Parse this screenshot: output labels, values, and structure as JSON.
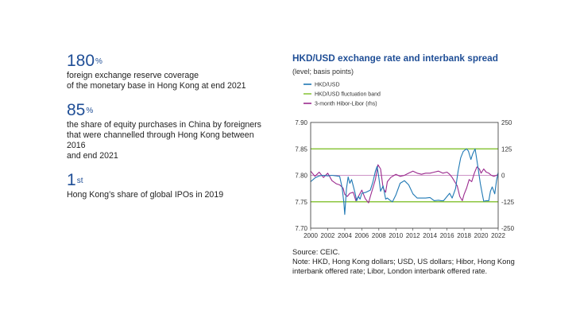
{
  "stats": [
    {
      "value": "180",
      "unit": "%",
      "desc": "foreign exchange reserve coverage\nof the monetary base in Hong Kong at end 2021"
    },
    {
      "value": "85",
      "unit": "%",
      "desc": "the share of equity purchases in China by foreigners\nthat were channelled through Hong Kong between 2016\nand end 2021"
    },
    {
      "value": "1",
      "unit": "st",
      "desc": "Hong Kong’s share of global IPOs in 2019"
    }
  ],
  "source": "Source: CEIC.",
  "note": "Note: HKD, Hong Kong dollars; USD, US dollars; Hibor, Hong Kong interbank offered rate; Libor, London interbank offered rate.",
  "colors": {
    "accent": "#1f4e96",
    "hkd": "#1f78b4",
    "band": "#8cc63f",
    "spread": "#9b2a8e"
  },
  "chart_data": {
    "type": "line",
    "title": "HKD/USD exchange rate and interbank spread",
    "subtitle": "(level; basis points)",
    "x_ticks": [
      "2000",
      "2002",
      "2004",
      "2006",
      "2008",
      "2010",
      "2012",
      "2014",
      "2016",
      "2018",
      "2020",
      "2022"
    ],
    "x_range": [
      2000,
      2022
    ],
    "ylim_left": [
      7.7,
      7.9
    ],
    "ylim_right": [
      -250,
      250
    ],
    "y_ticks_left": [
      "7.70",
      "7.75",
      "7.80",
      "7.85",
      "7.90"
    ],
    "y_ticks_right": [
      "-250",
      "-125",
      "0",
      "125",
      "250"
    ],
    "legend": [
      "HKD/USD",
      "HKD/USD fluctuation band",
      "3-month Hibor-Libor (rhs)"
    ],
    "band": [
      7.75,
      7.85
    ],
    "series": [
      {
        "name": "HKD/USD",
        "axis": "left",
        "x": [
          2000,
          2000.5,
          2001,
          2001.5,
          2002,
          2002.5,
          2003,
          2003.4,
          2003.7,
          2003.9,
          2004,
          2004.2,
          2004.4,
          2004.6,
          2004.8,
          2005,
          2005.2,
          2005.4,
          2005.6,
          2005.8,
          2006,
          2006.5,
          2007,
          2007.3,
          2007.6,
          2007.8,
          2008,
          2008.2,
          2008.5,
          2008.8,
          2009,
          2009.3,
          2009.6,
          2010,
          2010.5,
          2011,
          2011.5,
          2012,
          2012.5,
          2013,
          2013.5,
          2014,
          2014.5,
          2015,
          2015.3,
          2015.6,
          2016,
          2016.3,
          2016.6,
          2017,
          2017.3,
          2017.6,
          2017.9,
          2018.1,
          2018.3,
          2018.5,
          2018.8,
          2019,
          2019.3,
          2019.6,
          2019.9,
          2020.1,
          2020.3,
          2020.6,
          2020.9,
          2021.1,
          2021.3,
          2021.6,
          2021.8,
          2022
        ],
        "y": [
          7.788,
          7.795,
          7.799,
          7.8,
          7.799,
          7.8,
          7.799,
          7.798,
          7.776,
          7.748,
          7.726,
          7.775,
          7.797,
          7.785,
          7.792,
          7.78,
          7.767,
          7.752,
          7.76,
          7.755,
          7.766,
          7.768,
          7.772,
          7.787,
          7.808,
          7.817,
          7.796,
          7.77,
          7.78,
          7.755,
          7.757,
          7.753,
          7.75,
          7.763,
          7.785,
          7.79,
          7.782,
          7.765,
          7.757,
          7.757,
          7.757,
          7.758,
          7.752,
          7.753,
          7.752,
          7.752,
          7.76,
          7.766,
          7.757,
          7.775,
          7.808,
          7.833,
          7.845,
          7.848,
          7.85,
          7.846,
          7.83,
          7.84,
          7.85,
          7.818,
          7.785,
          7.768,
          7.751,
          7.752,
          7.752,
          7.77,
          7.778,
          7.765,
          7.79,
          7.805
        ]
      },
      {
        "name": "3-month Hibor-Libor (rhs)",
        "axis": "right",
        "x": [
          2000,
          2000.5,
          2001,
          2001.5,
          2002,
          2002.5,
          2003,
          2003.4,
          2003.8,
          2004,
          2004.3,
          2004.6,
          2005,
          2005.3,
          2005.6,
          2006,
          2006.4,
          2006.8,
          2007,
          2007.3,
          2007.6,
          2007.9,
          2008.2,
          2008.5,
          2008.8,
          2009,
          2009.4,
          2009.8,
          2010,
          2010.5,
          2011,
          2011.5,
          2012,
          2012.5,
          2013,
          2013.5,
          2014,
          2014.5,
          2015,
          2015.5,
          2016,
          2016.3,
          2016.6,
          2016.9,
          2017.2,
          2017.5,
          2017.8,
          2018,
          2018.3,
          2018.6,
          2018.9,
          2019.2,
          2019.5,
          2019.8,
          2020,
          2020.3,
          2020.6,
          2020.9,
          2021.2,
          2021.5,
          2021.8,
          2022
        ],
        "y": [
          20,
          -5,
          15,
          -10,
          10,
          -25,
          -40,
          -45,
          -60,
          -90,
          -100,
          -85,
          -80,
          -120,
          -100,
          -70,
          -110,
          -130,
          -100,
          -60,
          -20,
          50,
          30,
          -60,
          -80,
          -30,
          -10,
          0,
          5,
          -5,
          0,
          10,
          20,
          10,
          5,
          10,
          10,
          15,
          20,
          10,
          15,
          5,
          -10,
          -30,
          -50,
          -100,
          -120,
          -90,
          -60,
          -20,
          -30,
          10,
          40,
          30,
          10,
          30,
          15,
          10,
          0,
          -5,
          0,
          5
        ]
      }
    ]
  }
}
